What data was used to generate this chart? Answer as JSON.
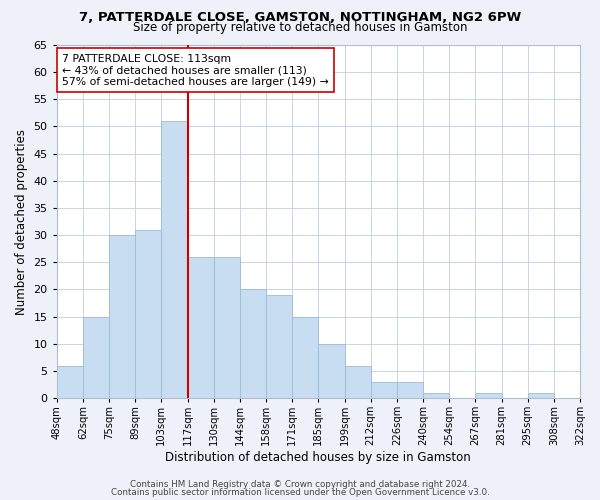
{
  "title": "7, PATTERDALE CLOSE, GAMSTON, NOTTINGHAM, NG2 6PW",
  "subtitle": "Size of property relative to detached houses in Gamston",
  "xlabel": "Distribution of detached houses by size in Gamston",
  "ylabel": "Number of detached properties",
  "bar_labels": [
    "48sqm",
    "62sqm",
    "75sqm",
    "89sqm",
    "103sqm",
    "117sqm",
    "130sqm",
    "144sqm",
    "158sqm",
    "171sqm",
    "185sqm",
    "199sqm",
    "212sqm",
    "226sqm",
    "240sqm",
    "254sqm",
    "267sqm",
    "281sqm",
    "295sqm",
    "308sqm",
    "322sqm"
  ],
  "bar_values": [
    6,
    15,
    30,
    31,
    51,
    26,
    26,
    20,
    19,
    15,
    10,
    6,
    3,
    3,
    1,
    0,
    1,
    0,
    1,
    0
  ],
  "bar_color": "#c9ddf2",
  "bar_edge_color": "#9bbcd8",
  "vline_color": "#cc0000",
  "vline_index": 5,
  "ylim": [
    0,
    65
  ],
  "yticks": [
    0,
    5,
    10,
    15,
    20,
    25,
    30,
    35,
    40,
    45,
    50,
    55,
    60,
    65
  ],
  "annotation_title": "7 PATTERDALE CLOSE: 113sqm",
  "annotation_line1": "← 43% of detached houses are smaller (113)",
  "annotation_line2": "57% of semi-detached houses are larger (149) →",
  "annotation_box_color": "#ffffff",
  "annotation_box_edge": "#cc0000",
  "footer1": "Contains HM Land Registry data © Crown copyright and database right 2024.",
  "footer2": "Contains public sector information licensed under the Open Government Licence v3.0.",
  "bg_color": "#eef2f8",
  "plot_bg_color": "#ffffff",
  "grid_color": "#c8d4e8"
}
